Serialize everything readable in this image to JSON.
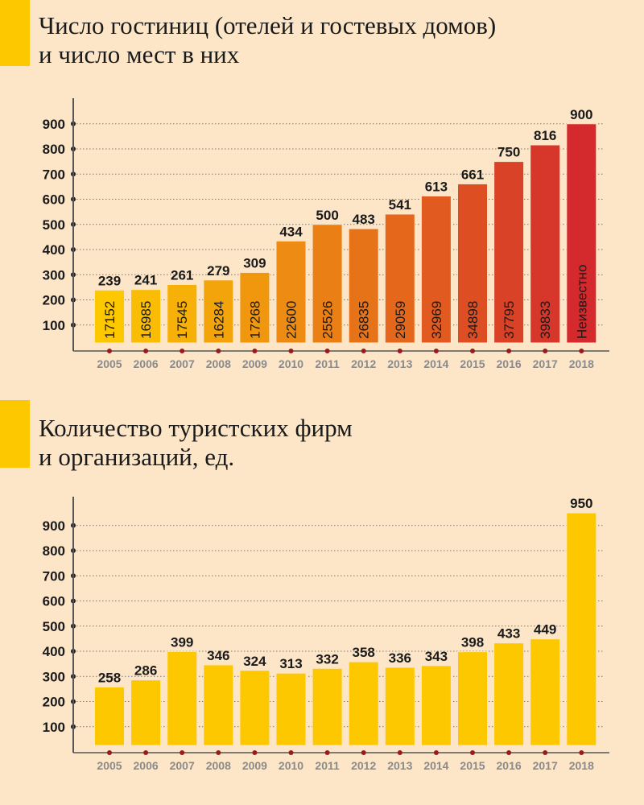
{
  "chart_data": [
    {
      "type": "bar",
      "title": "Число гостиниц (отелей и гостевых домов) и число мест в них",
      "title_lines": [
        "Число гостиниц (отелей и гостевых домов)",
        "и число мест в них"
      ],
      "categories": [
        "2005",
        "2006",
        "2007",
        "2008",
        "2009",
        "2010",
        "2011",
        "2012",
        "2013",
        "2014",
        "2015",
        "2016",
        "2017",
        "2018"
      ],
      "values": [
        239,
        241,
        261,
        279,
        309,
        434,
        500,
        483,
        541,
        613,
        661,
        750,
        816,
        900
      ],
      "inner_labels": [
        "17152",
        "16985",
        "17545",
        "16284",
        "17268",
        "22600",
        "25526",
        "26835",
        "29059",
        "32969",
        "34898",
        "37795",
        "39833",
        "Неизвестно"
      ],
      "yticks": [
        100,
        200,
        300,
        400,
        500,
        600,
        700,
        800,
        900
      ],
      "ylim": [
        0,
        1000
      ],
      "grid": true,
      "colors": {
        "start": "#fdc800",
        "end": "#d42a2e"
      }
    },
    {
      "type": "bar",
      "title": "Количество туристских фирм и организаций, ед.",
      "title_lines": [
        "Количество туристских фирм",
        "и организаций, ед."
      ],
      "categories": [
        "2005",
        "2006",
        "2007",
        "2008",
        "2009",
        "2010",
        "2011",
        "2012",
        "2013",
        "2014",
        "2015",
        "2016",
        "2017",
        "2018"
      ],
      "values": [
        258,
        286,
        399,
        346,
        324,
        313,
        332,
        358,
        336,
        343,
        398,
        433,
        449,
        950
      ],
      "yticks": [
        100,
        200,
        300,
        400,
        500,
        600,
        700,
        800,
        900
      ],
      "ylim": [
        0,
        1000
      ],
      "grid": true,
      "colors": {
        "bar": "#fdc800"
      }
    }
  ],
  "colors": {
    "background": "#fde6c8",
    "accent": "#fdc800",
    "tick_dot": "#9b1b1b"
  }
}
